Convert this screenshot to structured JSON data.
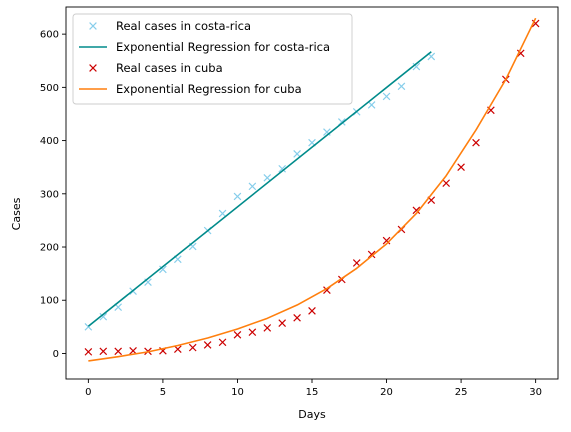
{
  "chart_data": {
    "type": "line",
    "xlabel": "Days",
    "ylabel": "Cases",
    "xlim": [
      -1.5,
      31.5
    ],
    "ylim": [
      -48,
      651
    ],
    "x_ticks": [
      0,
      5,
      10,
      15,
      20,
      25,
      30
    ],
    "y_ticks": [
      0,
      100,
      200,
      300,
      400,
      500,
      600
    ],
    "grid": false,
    "legend_placement": "top-left",
    "series": [
      {
        "name": "Real cases in costa-rica",
        "kind": "scatter",
        "marker": "x",
        "color": "#87ceeb",
        "x": [
          0,
          1,
          2,
          3,
          4,
          5,
          6,
          7,
          8,
          9,
          10,
          11,
          12,
          13,
          14,
          15,
          16,
          17,
          18,
          19,
          20,
          21,
          22,
          23
        ],
        "y": [
          50,
          69,
          87,
          117,
          134,
          158,
          177,
          201,
          231,
          263,
          295,
          314,
          330,
          347,
          375,
          396,
          416,
          435,
          454,
          467,
          483,
          502,
          539,
          558
        ]
      },
      {
        "name": "Exponential Regression for costa-rica",
        "kind": "line",
        "color": "#008b8b",
        "x": [
          0,
          23
        ],
        "y": [
          51,
          567
        ]
      },
      {
        "name": "Real cases in cuba",
        "kind": "scatter",
        "marker": "x",
        "color": "#cc0000",
        "x": [
          0,
          1,
          2,
          3,
          4,
          5,
          6,
          7,
          8,
          9,
          10,
          11,
          12,
          13,
          14,
          15,
          16,
          17,
          18,
          19,
          20,
          21,
          22,
          23,
          24,
          25,
          26,
          27,
          28,
          29,
          30
        ],
        "y": [
          3,
          4,
          4,
          5,
          4,
          5,
          8,
          11,
          16,
          21,
          35,
          40,
          48,
          57,
          67,
          80,
          119,
          139,
          170,
          186,
          212,
          233,
          269,
          288,
          320,
          350,
          396,
          457,
          515,
          564,
          620
        ]
      },
      {
        "name": "Exponential Regression for cuba",
        "kind": "line",
        "color": "#ff7f0e",
        "x": [
          0,
          2,
          4,
          6,
          8,
          10,
          12,
          14,
          16,
          18,
          20,
          22,
          24,
          26,
          28,
          30
        ],
        "y": [
          -14,
          -6,
          3,
          15,
          29,
          46,
          66,
          91,
          122,
          160,
          206,
          263,
          334,
          420,
          515,
          630
        ]
      }
    ]
  }
}
